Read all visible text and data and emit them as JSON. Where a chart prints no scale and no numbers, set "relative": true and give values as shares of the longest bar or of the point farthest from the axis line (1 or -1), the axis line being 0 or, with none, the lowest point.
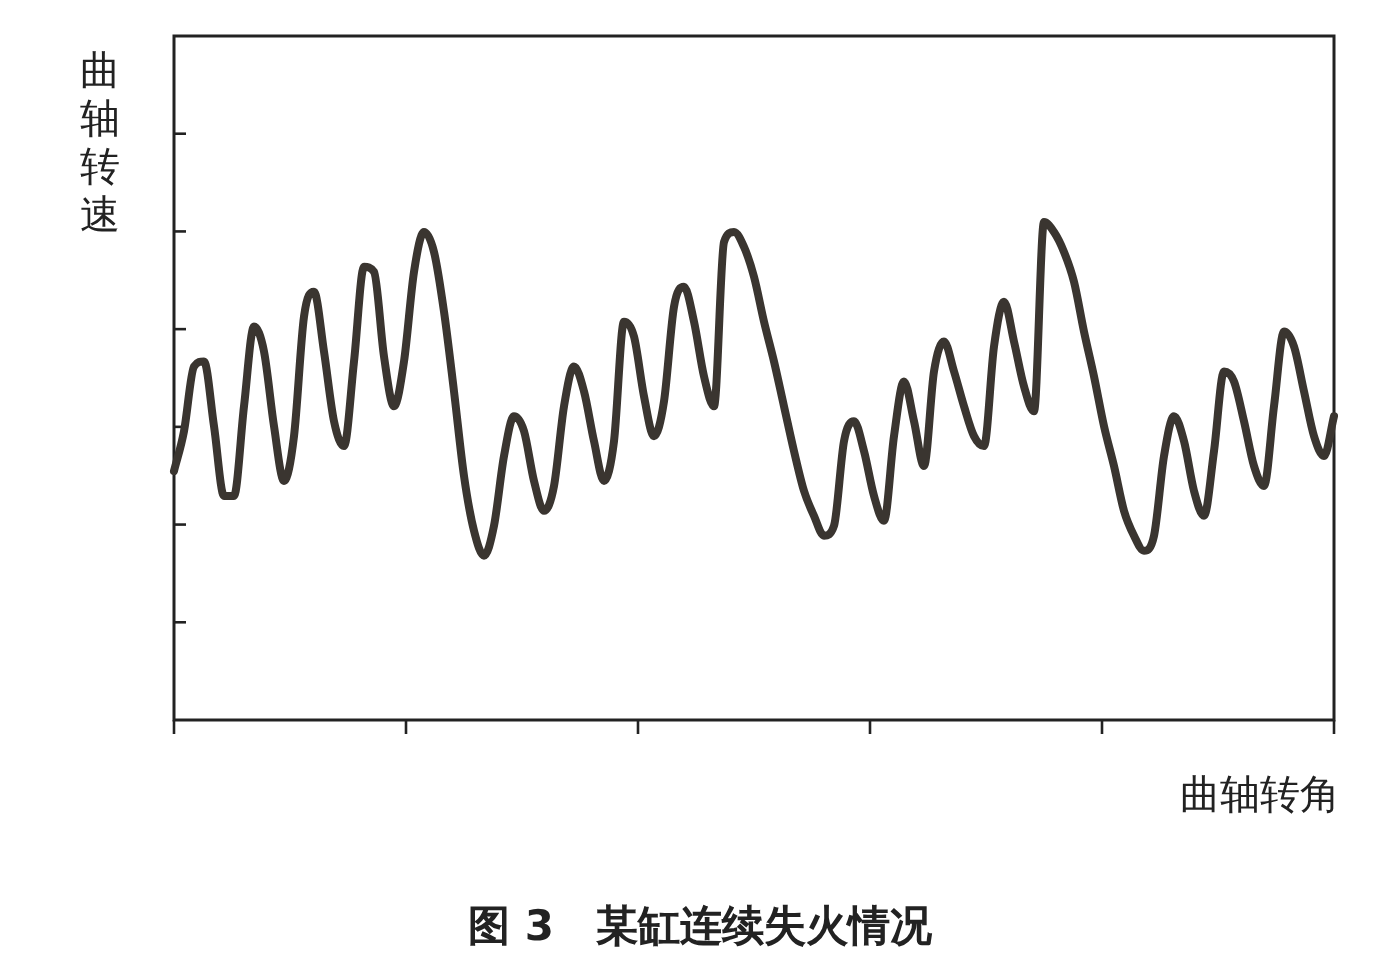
{
  "chart_data": {
    "type": "line",
    "relative": true,
    "title": "图 3　某缸连续失火情况",
    "xlabel": "曲轴转角",
    "ylabel": "曲轴转速",
    "categories": [
      null,
      null,
      null,
      null,
      null,
      null,
      null,
      null,
      null,
      null,
      null,
      null,
      null,
      null,
      null,
      null,
      null,
      null,
      null,
      null,
      null,
      null,
      null,
      null,
      null,
      null,
      null,
      null,
      null,
      null,
      null,
      null,
      null,
      null,
      null,
      null,
      null,
      null,
      null,
      null,
      null,
      null,
      null,
      null,
      null,
      null,
      null,
      null,
      null,
      null,
      null,
      null,
      null,
      null,
      null,
      null,
      null,
      null,
      null,
      null,
      null,
      null,
      null,
      null,
      null,
      null,
      null,
      null,
      null,
      null,
      null,
      null,
      null,
      null,
      null,
      null,
      null,
      null,
      null,
      null,
      null,
      null,
      null,
      null,
      null,
      null,
      null,
      null,
      null,
      null,
      null,
      null,
      null,
      null,
      null,
      null,
      null,
      null,
      null,
      null,
      null,
      null,
      null,
      null,
      null,
      null,
      null,
      null,
      null,
      null,
      null,
      null,
      null,
      null,
      null,
      null,
      null
    ],
    "series": [
      {
        "color": "#3a3530",
        "values": [
          0.5,
          0.58,
          0.71,
          0.72,
          0.59,
          0.45,
          0.45,
          0.63,
          0.79,
          0.74,
          0.59,
          0.48,
          0.57,
          0.81,
          0.86,
          0.74,
          0.6,
          0.55,
          0.72,
          0.91,
          0.9,
          0.73,
          0.63,
          0.72,
          0.9,
          0.98,
          0.94,
          0.82,
          0.66,
          0.49,
          0.38,
          0.33,
          0.39,
          0.53,
          0.61,
          0.58,
          0.48,
          0.42,
          0.47,
          0.63,
          0.71,
          0.66,
          0.56,
          0.48,
          0.56,
          0.8,
          0.77,
          0.65,
          0.57,
          0.64,
          0.83,
          0.87,
          0.8,
          0.69,
          0.63,
          0.96,
          0.98,
          0.95,
          0.89,
          0.8,
          0.72,
          0.63,
          0.54,
          0.46,
          0.41,
          0.37,
          0.39,
          0.56,
          0.6,
          0.54,
          0.45,
          0.4,
          0.57,
          0.68,
          0.6,
          0.51,
          0.7,
          0.76,
          0.7,
          0.63,
          0.57,
          0.55,
          0.75,
          0.84,
          0.76,
          0.67,
          0.62,
          1.0,
          0.98,
          0.94,
          0.88,
          0.78,
          0.69,
          0.59,
          0.51,
          0.42,
          0.37,
          0.34,
          0.37,
          0.53,
          0.61,
          0.56,
          0.46,
          0.41,
          0.54,
          0.7,
          0.68,
          0.6,
          0.51,
          0.47,
          0.63,
          0.78,
          0.75,
          0.66,
          0.57,
          0.53,
          0.61
        ]
      }
    ]
  }
}
